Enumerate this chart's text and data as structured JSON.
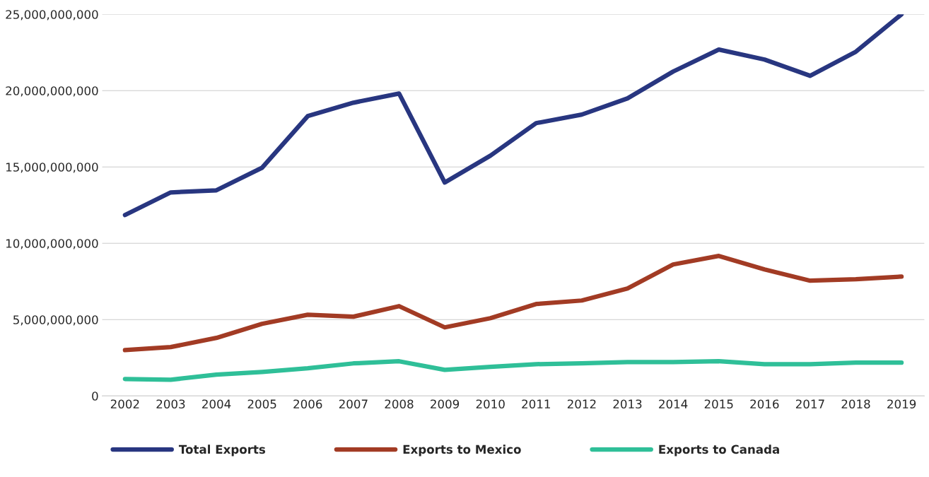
{
  "chart_data": {
    "type": "line",
    "categories": [
      "2002",
      "2003",
      "2004",
      "2005",
      "2006",
      "2007",
      "2008",
      "2009",
      "2010",
      "2011",
      "2012",
      "2013",
      "2014",
      "2015",
      "2016",
      "2017",
      "2018",
      "2019"
    ],
    "series": [
      {
        "name": "Total Exports",
        "color": "#283680",
        "values": [
          11850000000,
          13330000000,
          13470000000,
          14950000000,
          18330000000,
          19210000000,
          19810000000,
          13980000000,
          15740000000,
          17870000000,
          18430000000,
          19490000000,
          21250000000,
          22690000000,
          22040000000,
          20970000000,
          22550000000,
          25000000000
        ]
      },
      {
        "name": "Exports to Mexico",
        "color": "#a23b24",
        "values": [
          3000000000,
          3200000000,
          3800000000,
          4720000000,
          5320000000,
          5190000000,
          5880000000,
          4490000000,
          5090000000,
          6020000000,
          6250000000,
          7040000000,
          8610000000,
          9170000000,
          8290000000,
          7550000000,
          7640000000,
          7820000000
        ]
      },
      {
        "name": "Exports to Canada",
        "color": "#2fbf98",
        "values": [
          1110000000,
          1060000000,
          1390000000,
          1570000000,
          1810000000,
          2130000000,
          2270000000,
          1710000000,
          1900000000,
          2080000000,
          2130000000,
          2220000000,
          2220000000,
          2270000000,
          2080000000,
          2080000000,
          2180000000,
          2180000000
        ]
      }
    ],
    "ylim": [
      0,
      25000000000
    ],
    "yticks": [
      0,
      {
        "value": 5000000000,
        "label": "5,000,000,000"
      },
      {
        "value": 10000000000,
        "label": "10,000,000,000"
      },
      {
        "value": 15000000000,
        "label": "15,000,000,000"
      },
      {
        "value": 20000000000,
        "label": "20,000,000,000"
      },
      {
        "value": 25000000000,
        "label": "25,000,000,000"
      }
    ],
    "grid": "y",
    "legend": "bottom",
    "marker": "none",
    "line_style": "solid"
  }
}
